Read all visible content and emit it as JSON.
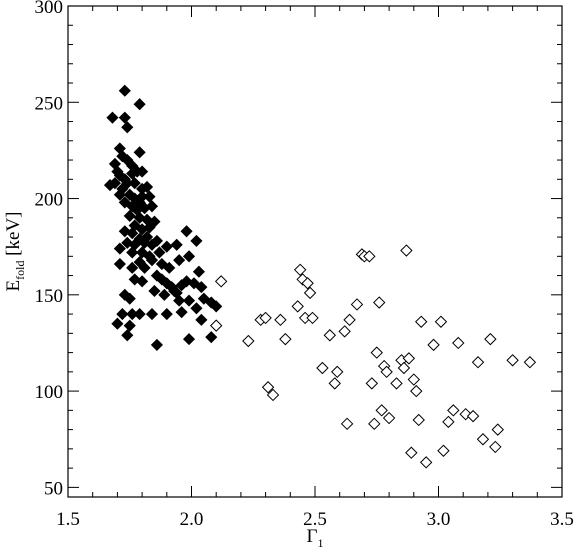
{
  "chart_data": {
    "type": "scatter",
    "xlabel": "Γ",
    "xlabel_sub": "1",
    "ylabel": "E",
    "ylabel_sub": "fold",
    "ylabel_unit": " [keV]",
    "xlim": [
      1.5,
      3.5
    ],
    "ylim": [
      45,
      300
    ],
    "xticks": [
      1.5,
      2.0,
      2.5,
      3.0,
      3.5
    ],
    "xtick_labels": [
      "1.5",
      "2.0",
      "2.5",
      "3.0",
      "3.5"
    ],
    "yticks": [
      50,
      100,
      150,
      200,
      250,
      300
    ],
    "ytick_labels": [
      "50",
      "100",
      "150",
      "200",
      "250",
      "300"
    ],
    "grid": false,
    "series": [
      {
        "marker": "filled-diamond",
        "color": "#000000",
        "points": [
          [
            1.73,
            256
          ],
          [
            1.79,
            249
          ],
          [
            1.68,
            242
          ],
          [
            1.73,
            242
          ],
          [
            1.74,
            237
          ],
          [
            1.71,
            226
          ],
          [
            1.72,
            222
          ],
          [
            1.79,
            224
          ],
          [
            1.74,
            220
          ],
          [
            1.69,
            218
          ],
          [
            1.76,
            217
          ],
          [
            1.7,
            214
          ],
          [
            1.71,
            212
          ],
          [
            1.73,
            210
          ],
          [
            1.76,
            213
          ],
          [
            1.78,
            214
          ],
          [
            1.8,
            214
          ],
          [
            1.69,
            208
          ],
          [
            1.67,
            207
          ],
          [
            1.72,
            205
          ],
          [
            1.74,
            208
          ],
          [
            1.77,
            208
          ],
          [
            1.8,
            205
          ],
          [
            1.82,
            206
          ],
          [
            1.71,
            202
          ],
          [
            1.75,
            202
          ],
          [
            1.77,
            200
          ],
          [
            1.79,
            198
          ],
          [
            1.8,
            201
          ],
          [
            1.83,
            201
          ],
          [
            1.73,
            198
          ],
          [
            1.76,
            196
          ],
          [
            1.78,
            194
          ],
          [
            1.81,
            195
          ],
          [
            1.84,
            196
          ],
          [
            1.75,
            191
          ],
          [
            1.79,
            190
          ],
          [
            1.82,
            189
          ],
          [
            1.85,
            188
          ],
          [
            1.77,
            186
          ],
          [
            1.8,
            184
          ],
          [
            1.83,
            185
          ],
          [
            1.73,
            183
          ],
          [
            1.76,
            182
          ],
          [
            1.79,
            179
          ],
          [
            1.82,
            180
          ],
          [
            1.74,
            177
          ],
          [
            1.77,
            176
          ],
          [
            1.81,
            177
          ],
          [
            1.84,
            176
          ],
          [
            1.86,
            178
          ],
          [
            1.71,
            174
          ],
          [
            1.76,
            172
          ],
          [
            1.8,
            172
          ],
          [
            1.83,
            170
          ],
          [
            1.87,
            172
          ],
          [
            1.9,
            175
          ],
          [
            1.94,
            176
          ],
          [
            1.98,
            183
          ],
          [
            2.02,
            178
          ],
          [
            1.79,
            167
          ],
          [
            1.84,
            168
          ],
          [
            1.88,
            166
          ],
          [
            1.91,
            164
          ],
          [
            1.95,
            168
          ],
          [
            1.99,
            170
          ],
          [
            2.03,
            162
          ],
          [
            1.71,
            166
          ],
          [
            1.76,
            164
          ],
          [
            1.81,
            164
          ],
          [
            1.86,
            160
          ],
          [
            1.88,
            158
          ],
          [
            1.9,
            156
          ],
          [
            1.92,
            154
          ],
          [
            1.94,
            151
          ],
          [
            1.96,
            155
          ],
          [
            1.98,
            157
          ],
          [
            2.01,
            156
          ],
          [
            2.04,
            154
          ],
          [
            1.77,
            158
          ],
          [
            1.8,
            157
          ],
          [
            1.85,
            152
          ],
          [
            1.89,
            150
          ],
          [
            1.93,
            152
          ],
          [
            1.95,
            147
          ],
          [
            1.99,
            147
          ],
          [
            2.02,
            143
          ],
          [
            2.05,
            148
          ],
          [
            2.08,
            146
          ],
          [
            2.1,
            144
          ],
          [
            1.73,
            150
          ],
          [
            1.75,
            148
          ],
          [
            1.72,
            140
          ],
          [
            1.76,
            140
          ],
          [
            1.79,
            140
          ],
          [
            1.84,
            140
          ],
          [
            1.9,
            140
          ],
          [
            1.96,
            141
          ],
          [
            2.04,
            137
          ],
          [
            1.7,
            135
          ],
          [
            1.75,
            134
          ],
          [
            1.74,
            129
          ],
          [
            1.86,
            124
          ],
          [
            1.99,
            127
          ],
          [
            2.08,
            128
          ]
        ]
      },
      {
        "marker": "open-diamond",
        "color": "#000000",
        "points": [
          [
            2.12,
            157
          ],
          [
            2.1,
            134
          ],
          [
            2.23,
            126
          ],
          [
            2.28,
            137
          ],
          [
            2.3,
            138
          ],
          [
            2.31,
            102
          ],
          [
            2.33,
            98
          ],
          [
            2.36,
            137
          ],
          [
            2.38,
            127
          ],
          [
            2.43,
            144
          ],
          [
            2.44,
            163
          ],
          [
            2.45,
            158
          ],
          [
            2.47,
            156
          ],
          [
            2.48,
            151
          ],
          [
            2.46,
            138
          ],
          [
            2.49,
            138
          ],
          [
            2.53,
            112
          ],
          [
            2.56,
            129
          ],
          [
            2.58,
            104
          ],
          [
            2.59,
            110
          ],
          [
            2.62,
            131
          ],
          [
            2.63,
            83
          ],
          [
            2.64,
            137
          ],
          [
            2.67,
            145
          ],
          [
            2.69,
            171
          ],
          [
            2.7,
            170
          ],
          [
            2.72,
            170
          ],
          [
            2.73,
            104
          ],
          [
            2.74,
            83
          ],
          [
            2.75,
            120
          ],
          [
            2.76,
            146
          ],
          [
            2.77,
            90
          ],
          [
            2.78,
            113
          ],
          [
            2.79,
            110
          ],
          [
            2.8,
            86
          ],
          [
            2.83,
            104
          ],
          [
            2.85,
            116
          ],
          [
            2.86,
            112
          ],
          [
            2.87,
            173
          ],
          [
            2.88,
            117
          ],
          [
            2.89,
            68
          ],
          [
            2.9,
            106
          ],
          [
            2.91,
            100
          ],
          [
            2.92,
            85
          ],
          [
            2.93,
            136
          ],
          [
            2.95,
            63
          ],
          [
            2.98,
            124
          ],
          [
            3.01,
            136
          ],
          [
            3.02,
            69
          ],
          [
            3.04,
            84
          ],
          [
            3.06,
            90
          ],
          [
            3.08,
            125
          ],
          [
            3.11,
            88
          ],
          [
            3.14,
            87
          ],
          [
            3.16,
            115
          ],
          [
            3.18,
            75
          ],
          [
            3.21,
            127
          ],
          [
            3.23,
            71
          ],
          [
            3.24,
            80
          ],
          [
            3.3,
            116
          ],
          [
            3.37,
            115
          ]
        ]
      }
    ]
  }
}
